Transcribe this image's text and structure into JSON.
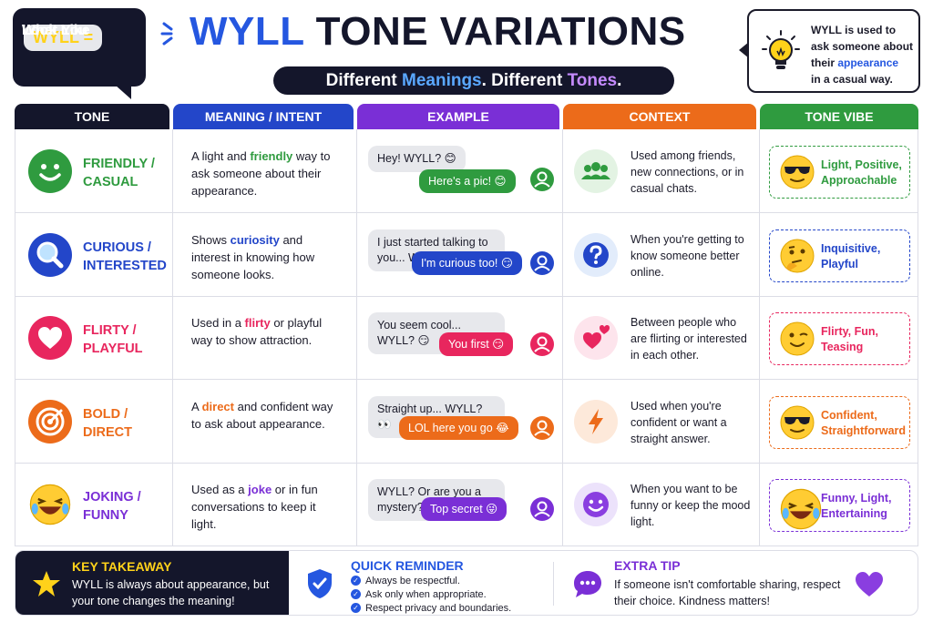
{
  "header": {
    "badge_line1": "WYLL =",
    "badge_line2": "What You",
    "badge_line3": "Look Like",
    "title_part1": "WYLL",
    "title_part2": "TONE VARIATIONS",
    "subtitle_part1": "Different ",
    "subtitle_part2": "Meanings",
    "subtitle_part3": ". Different ",
    "subtitle_part4": "Tones",
    "subtitle_part5": ".",
    "info_line1": "WYLL is used to",
    "info_line2": "ask someone about",
    "info_line3_a": "their ",
    "info_line3_b": "appearance",
    "info_line4": "in a casual way."
  },
  "columns": [
    {
      "label": "TONE",
      "color": "#14162b"
    },
    {
      "label": "MEANING / INTENT",
      "color": "#2346c9"
    },
    {
      "label": "EXAMPLE",
      "color": "#7a2fd6"
    },
    {
      "label": "CONTEXT",
      "color": "#ec6b1a"
    },
    {
      "label": "TONE VIBE",
      "color": "#2f9b3f"
    }
  ],
  "rows": [
    {
      "tone_line1": "FRIENDLY /",
      "tone_line2": "CASUAL",
      "color": "#2f9b3f",
      "icon": "smile-icon",
      "meaning_a": "A light and ",
      "meaning_hl": "friendly",
      "meaning_b": " way to ask someone about their appearance.",
      "msg_in": "Hey! WYLL? 😊",
      "msg_out": "Here's a pic! 😊",
      "context": "Used among friends, new connections, or in casual chats.",
      "context_icon": "group-icon",
      "context_bg": "#e3f3e3",
      "vibe_line1": "Light, Positive,",
      "vibe_line2": "Approachable",
      "vibe_icon": "sunglasses-emoji-icon"
    },
    {
      "tone_line1": "CURIOUS /",
      "tone_line2": "INTERESTED",
      "color": "#2346c9",
      "icon": "magnifier-icon",
      "meaning_a": "Shows ",
      "meaning_hl": "curiosity",
      "meaning_b": " and interest in knowing how someone looks.",
      "msg_in": "I just started talking to you... WYLL? 👀",
      "msg_out": "I'm curious too! 😏",
      "context": "When you're getting to know someone better online.",
      "context_icon": "question-icon",
      "context_bg": "#e2ecfb",
      "vibe_line1": "Inquisitive,",
      "vibe_line2": "Playful",
      "vibe_icon": "thinking-emoji-icon"
    },
    {
      "tone_line1": "FLIRTY /",
      "tone_line2": "PLAYFUL",
      "color": "#e8265e",
      "icon": "heart-icon",
      "meaning_a": "Used in a ",
      "meaning_hl": "flirty",
      "meaning_b": " or playful way to show attraction.",
      "msg_in": "You seem cool... WYLL? 😏",
      "msg_out": "You first 😏",
      "context": "Between people who are flirting or interested in each other.",
      "context_icon": "hearts-icon",
      "context_bg": "#fde4ec",
      "vibe_line1": "Flirty, Fun,",
      "vibe_line2": "Teasing",
      "vibe_icon": "wink-emoji-icon"
    },
    {
      "tone_line1": "BOLD /",
      "tone_line2": "DIRECT",
      "color": "#ec6b1a",
      "icon": "target-icon",
      "meaning_a": "A ",
      "meaning_hl": "direct",
      "meaning_b": " and confident way to ask about appearance.",
      "msg_in": "Straight up... WYLL? 👀",
      "msg_out": "LOL here you go 😂",
      "context": "Used when you're confident or want a straight answer.",
      "context_icon": "lightning-icon",
      "context_bg": "#fde9da",
      "vibe_line1": "Confident,",
      "vibe_line2": "Straightforward",
      "vibe_icon": "sunglasses-emoji-icon"
    },
    {
      "tone_line1": "JOKING /",
      "tone_line2": "FUNNY",
      "color": "#7a2fd6",
      "icon": "laughing-emoji-icon",
      "meaning_a": "Used as a ",
      "meaning_hl": "joke",
      "meaning_b": " or in fun conversations to keep it light.",
      "msg_in": "WYLL? Or are you a mystery? 😂",
      "msg_out": "Top secret 😜",
      "context": "When you want to be funny or keep the mood light.",
      "context_icon": "smiley-face-icon",
      "context_bg": "#ece2fb",
      "vibe_line1": "Funny, Light,",
      "vibe_line2": "Entertaining",
      "vibe_icon": "laughing-emoji-icon"
    }
  ],
  "footer": {
    "key_title": "KEY TAKEAWAY",
    "key_text": "WYLL is always about appearance, but your tone changes the meaning!",
    "reminder_title": "QUICK REMINDER",
    "reminders": [
      "Always be respectful.",
      "Ask only when appropriate.",
      "Respect privacy and boundaries."
    ],
    "tip_title": "EXTRA TIP",
    "tip_text": "If someone isn't comfortable sharing, respect their choice. Kindness matters!"
  }
}
